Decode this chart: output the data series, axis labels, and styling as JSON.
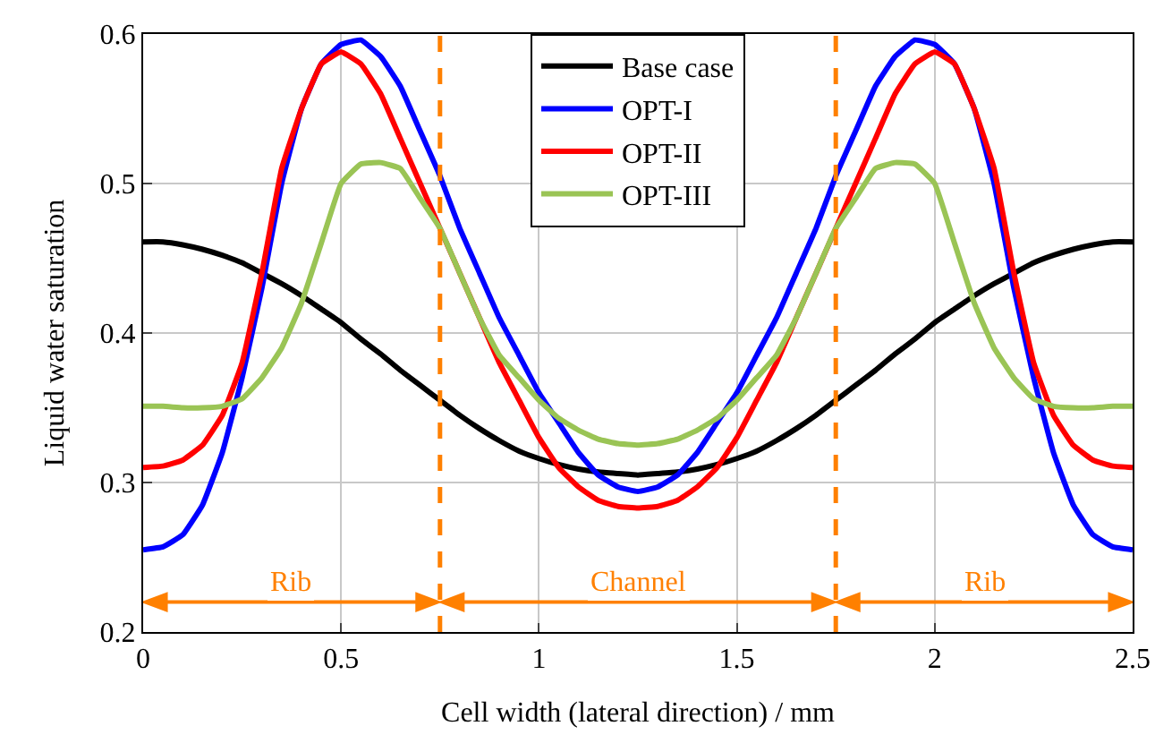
{
  "chart_data": {
    "type": "line",
    "xlabel": "Cell width (lateral direction) / mm",
    "ylabel": "Liquid water saturation",
    "x": [
      0,
      0.05,
      0.1,
      0.15,
      0.2,
      0.25,
      0.3,
      0.35,
      0.4,
      0.45,
      0.5,
      0.55,
      0.6,
      0.65,
      0.7,
      0.75,
      0.8,
      0.85,
      0.9,
      0.95,
      1.0,
      1.05,
      1.1,
      1.15,
      1.2,
      1.25,
      1.3,
      1.35,
      1.4,
      1.45,
      1.5,
      1.55,
      1.6,
      1.65,
      1.7,
      1.75,
      1.8,
      1.85,
      1.9,
      1.95,
      2.0,
      2.05,
      2.1,
      2.15,
      2.2,
      2.25,
      2.3,
      2.35,
      2.4,
      2.45,
      2.5
    ],
    "series": [
      {
        "name": "Base case",
        "color": "#000000",
        "values": [
          0.461,
          0.461,
          0.459,
          0.456,
          0.452,
          0.447,
          0.44,
          0.433,
          0.425,
          0.416,
          0.407,
          0.396,
          0.386,
          0.375,
          0.365,
          0.355,
          0.345,
          0.336,
          0.328,
          0.321,
          0.316,
          0.312,
          0.309,
          0.307,
          0.306,
          0.305,
          0.306,
          0.307,
          0.309,
          0.312,
          0.316,
          0.321,
          0.328,
          0.336,
          0.345,
          0.355,
          0.365,
          0.375,
          0.386,
          0.396,
          0.407,
          0.416,
          0.425,
          0.433,
          0.44,
          0.447,
          0.452,
          0.456,
          0.459,
          0.461,
          0.461
        ]
      },
      {
        "name": "OPT-I",
        "color": "#0000ff",
        "values": [
          0.255,
          0.257,
          0.265,
          0.285,
          0.32,
          0.37,
          0.43,
          0.5,
          0.55,
          0.58,
          0.593,
          0.596,
          0.585,
          0.565,
          0.535,
          0.505,
          0.47,
          0.44,
          0.41,
          0.385,
          0.36,
          0.34,
          0.32,
          0.305,
          0.297,
          0.294,
          0.297,
          0.305,
          0.32,
          0.34,
          0.36,
          0.385,
          0.41,
          0.44,
          0.47,
          0.505,
          0.535,
          0.565,
          0.585,
          0.596,
          0.593,
          0.58,
          0.55,
          0.5,
          0.43,
          0.37,
          0.32,
          0.285,
          0.265,
          0.257,
          0.255
        ]
      },
      {
        "name": "OPT-II",
        "color": "#ff0000",
        "values": [
          0.31,
          0.311,
          0.315,
          0.325,
          0.345,
          0.38,
          0.44,
          0.51,
          0.55,
          0.58,
          0.588,
          0.58,
          0.56,
          0.53,
          0.5,
          0.47,
          0.44,
          0.41,
          0.38,
          0.355,
          0.33,
          0.31,
          0.297,
          0.288,
          0.284,
          0.283,
          0.284,
          0.288,
          0.297,
          0.31,
          0.33,
          0.355,
          0.38,
          0.41,
          0.44,
          0.47,
          0.5,
          0.53,
          0.56,
          0.58,
          0.588,
          0.58,
          0.55,
          0.51,
          0.44,
          0.38,
          0.345,
          0.325,
          0.315,
          0.311,
          0.31
        ]
      },
      {
        "name": "OPT-III",
        "color": "#9ac455",
        "values": [
          0.351,
          0.351,
          0.35,
          0.35,
          0.351,
          0.356,
          0.37,
          0.39,
          0.42,
          0.46,
          0.5,
          0.513,
          0.514,
          0.51,
          0.49,
          0.47,
          0.44,
          0.41,
          0.385,
          0.37,
          0.355,
          0.343,
          0.335,
          0.329,
          0.326,
          0.325,
          0.326,
          0.329,
          0.335,
          0.343,
          0.355,
          0.37,
          0.385,
          0.41,
          0.44,
          0.47,
          0.49,
          0.51,
          0.514,
          0.513,
          0.5,
          0.46,
          0.42,
          0.39,
          0.37,
          0.356,
          0.351,
          0.35,
          0.35,
          0.351,
          0.351
        ]
      }
    ],
    "xlim": [
      0,
      2.5
    ],
    "xticks": [
      0,
      0.5,
      1,
      1.5,
      2,
      2.5
    ],
    "ylim": [
      0.2,
      0.6
    ],
    "yticks": [
      0.2,
      0.3,
      0.4,
      0.5,
      0.6
    ],
    "grid": true,
    "legend": "top",
    "marker": "none",
    "line_style": "solid",
    "ref_lines": [
      {
        "axis": "x",
        "value": 0.75,
        "color": "#ff8000",
        "line_style": "dashed"
      },
      {
        "axis": "x",
        "value": 1.75,
        "color": "#ff8000",
        "line_style": "dashed"
      }
    ],
    "annotations": [
      "Rib",
      "Channel",
      "Rib"
    ]
  }
}
